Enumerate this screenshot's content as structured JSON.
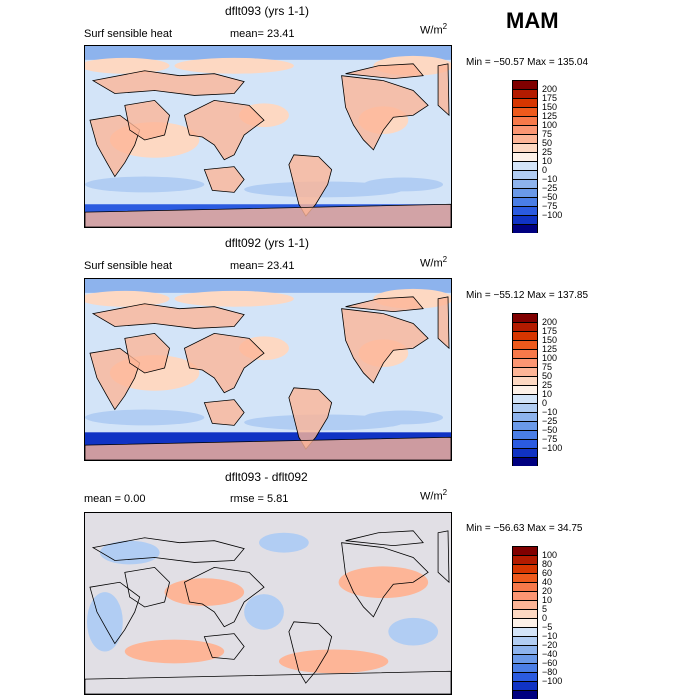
{
  "season": "MAM",
  "panels": [
    {
      "title": "dflt093 (yrs 1-1)",
      "left_label": "Surf sensible heat",
      "right_label": "mean=  23.41",
      "units": "W/m",
      "units_sup": "2",
      "minmax": "Min = −50.57 Max = 135.04",
      "colorbar": {
        "colors": [
          "#800000",
          "#b31b00",
          "#d73600",
          "#ee5a1c",
          "#f7794a",
          "#fb9673",
          "#fdb597",
          "#fdd8c2",
          "#fdf1e8",
          "#d3e4f8",
          "#b1cdf3",
          "#8db3ed",
          "#6a99e8",
          "#4a7ee6",
          "#2b5be0",
          "#1033c4",
          "#000080"
        ],
        "ticks": [
          "200",
          "175",
          "150",
          "125",
          "100",
          "75",
          "50",
          "25",
          "10",
          "0",
          "−10",
          "−25",
          "−50",
          "−75",
          "−100"
        ]
      }
    },
    {
      "title": "dflt092 (yrs 1-1)",
      "left_label": "Surf sensible heat",
      "right_label": "mean=  23.41",
      "units": "W/m",
      "units_sup": "2",
      "minmax": "Min = −55.12 Max = 137.85",
      "colorbar": {
        "colors": [
          "#800000",
          "#b31b00",
          "#d73600",
          "#ee5a1c",
          "#f7794a",
          "#fb9673",
          "#fdb597",
          "#fdd8c2",
          "#fdf1e8",
          "#d3e4f8",
          "#b1cdf3",
          "#8db3ed",
          "#6a99e8",
          "#4a7ee6",
          "#2b5be0",
          "#1033c4",
          "#000080"
        ],
        "ticks": [
          "200",
          "175",
          "150",
          "125",
          "100",
          "75",
          "50",
          "25",
          "10",
          "0",
          "−10",
          "−25",
          "−50",
          "−75",
          "−100"
        ]
      }
    },
    {
      "title": "dflt093 - dflt092",
      "left_label": "mean =    0.00",
      "right_label": "rmse =    5.81",
      "units": "W/m",
      "units_sup": "2",
      "minmax": "Min = −56.63 Max =  34.75",
      "colorbar": {
        "colors": [
          "#800000",
          "#b31b00",
          "#d73600",
          "#ee5a1c",
          "#f7794a",
          "#fb9673",
          "#fdb597",
          "#fdd8c2",
          "#fdf1e8",
          "#d3e4f8",
          "#b1cdf3",
          "#8db3ed",
          "#6a99e8",
          "#4a7ee6",
          "#2b5be0",
          "#1033c4",
          "#000080"
        ],
        "ticks": [
          "100",
          "80",
          "60",
          "40",
          "20",
          "10",
          "5",
          "0",
          "−5",
          "−10",
          "−20",
          "−40",
          "−60",
          "−80",
          "−100"
        ]
      }
    }
  ],
  "chart_data": [
    {
      "type": "heatmap",
      "title": "dflt093 (yrs 1-1)",
      "variable": "Surf sensible heat",
      "units": "W/m2",
      "mean": 23.41,
      "min": -50.57,
      "max": 135.04,
      "contour_levels": [
        -100,
        -75,
        -50,
        -25,
        -10,
        0,
        10,
        25,
        50,
        75,
        100,
        125,
        150,
        175,
        200
      ]
    },
    {
      "type": "heatmap",
      "title": "dflt092 (yrs 1-1)",
      "variable": "Surf sensible heat",
      "units": "W/m2",
      "mean": 23.41,
      "min": -55.12,
      "max": 137.85,
      "contour_levels": [
        -100,
        -75,
        -50,
        -25,
        -10,
        0,
        10,
        25,
        50,
        75,
        100,
        125,
        150,
        175,
        200
      ]
    },
    {
      "type": "heatmap",
      "title": "dflt093 - dflt092",
      "units": "W/m2",
      "mean": 0.0,
      "rmse": 5.81,
      "min": -56.63,
      "max": 34.75,
      "contour_levels": [
        -100,
        -80,
        -60,
        -40,
        -20,
        -10,
        -5,
        0,
        5,
        10,
        20,
        40,
        60,
        80,
        100
      ]
    }
  ]
}
